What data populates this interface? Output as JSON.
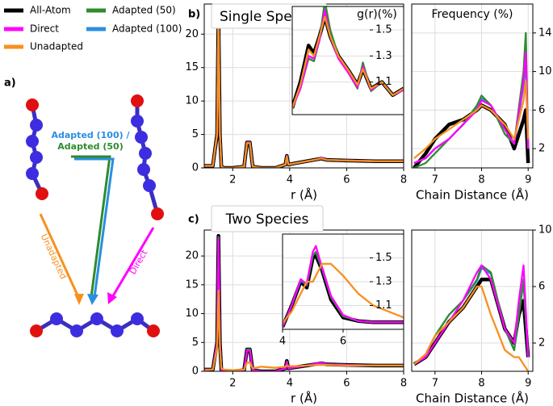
{
  "panel_labels": [
    "a)",
    "b)",
    "c)"
  ],
  "diagram_labels": {
    "unadapted": "Unadapted",
    "direct": "Direct",
    "adapted_100": "Adapted (100) /",
    "adapted_50": "Adapted (50)"
  },
  "chart_data": [
    {
      "type": "line",
      "title": "Single Species",
      "xlabel": "r (Å)",
      "xlim": [
        1,
        8
      ],
      "xticks": [
        2,
        4,
        6,
        8
      ],
      "ylim": [
        0,
        24.5
      ],
      "yticks": [
        0,
        5,
        10,
        15,
        20
      ],
      "grid": true,
      "x": [
        1,
        1.3,
        1.45,
        1.5,
        1.55,
        1.6,
        1.7,
        2,
        2.4,
        2.5,
        2.6,
        2.7,
        3,
        3.5,
        3.85,
        3.9,
        3.95,
        4.2,
        4.6,
        5,
        5.1,
        5.3,
        6,
        7,
        8
      ],
      "series": [
        {
          "name": "All-Atom",
          "color": "#000000",
          "values": [
            0.3,
            0.3,
            5,
            23.5,
            5,
            0.2,
            0,
            0,
            0.2,
            3.8,
            3.8,
            0.2,
            0,
            0,
            0.5,
            1.8,
            0.5,
            0.7,
            1,
            1.3,
            1.4,
            1.2,
            1.1,
            1,
            1
          ]
        },
        {
          "name": "Direct",
          "color": "#ff00ff",
          "values": [
            0.3,
            0.3,
            5,
            23.3,
            5,
            0.2,
            0,
            0,
            0.2,
            3.8,
            3.8,
            0.2,
            0,
            0,
            0.5,
            1.8,
            0.5,
            0.7,
            1,
            1.3,
            1.5,
            1.2,
            1.1,
            1,
            1
          ]
        },
        {
          "name": "Unadapted",
          "color": "#f7901e",
          "values": [
            0.3,
            0.3,
            5,
            23.3,
            5,
            0.2,
            0,
            0,
            0.2,
            3.7,
            3.7,
            0.2,
            0,
            0,
            0.5,
            1.7,
            0.5,
            0.7,
            1,
            1.3,
            1.4,
            1.2,
            1.1,
            1,
            1
          ]
        },
        {
          "name": "Adapted (50)",
          "color": "#2e8b2e",
          "values": [
            0.3,
            0.3,
            5,
            23.4,
            5,
            0.2,
            0,
            0,
            0.2,
            3.8,
            3.8,
            0.2,
            0,
            0,
            0.5,
            1.8,
            0.5,
            0.7,
            1,
            1.3,
            1.5,
            1.2,
            1.1,
            1,
            1
          ]
        },
        {
          "name": "Adapted (100)",
          "color": "#2a8fe0",
          "values": [
            0.3,
            0.3,
            5,
            23.4,
            5,
            0.2,
            0,
            0,
            0.2,
            3.8,
            3.8,
            0.2,
            0,
            0,
            0.5,
            1.8,
            0.5,
            0.7,
            1,
            1.3,
            1.5,
            1.2,
            1.1,
            1,
            1
          ]
        }
      ]
    },
    {
      "type": "line",
      "title": "g(r)(%)",
      "xlim": [
        3.9,
        8
      ],
      "ylim": [
        0.85,
        1.68
      ],
      "yticks": [
        1.1,
        1.3,
        1.5
      ],
      "grid": true,
      "x": [
        3.9,
        4.2,
        4.5,
        4.7,
        4.9,
        5.1,
        5.3,
        5.6,
        6,
        6.3,
        6.5,
        6.8,
        7.2,
        7.6,
        8
      ],
      "series": [
        {
          "name": "All-Atom",
          "color": "#000000",
          "values": [
            0.9,
            1.1,
            1.38,
            1.32,
            1.45,
            1.6,
            1.45,
            1.3,
            1.18,
            1.08,
            1.2,
            1.05,
            1.1,
            1.0,
            1.05
          ]
        },
        {
          "name": "Direct",
          "color": "#ff00ff",
          "values": [
            0.9,
            1.05,
            1.3,
            1.28,
            1.42,
            1.65,
            1.45,
            1.28,
            1.16,
            1.06,
            1.22,
            1.04,
            1.1,
            1.0,
            1.04
          ]
        },
        {
          "name": "Unadapted",
          "color": "#f7901e",
          "values": [
            0.9,
            1.08,
            1.35,
            1.3,
            1.45,
            1.6,
            1.45,
            1.3,
            1.18,
            1.08,
            1.2,
            1.05,
            1.1,
            1.0,
            1.05
          ]
        },
        {
          "name": "Adapted (50)",
          "color": "#2e8b2e",
          "values": [
            0.9,
            1.05,
            1.28,
            1.26,
            1.42,
            1.72,
            1.5,
            1.3,
            1.16,
            1.05,
            1.25,
            1.03,
            1.1,
            1.0,
            1.04
          ]
        },
        {
          "name": "Adapted (100)",
          "color": "#2a8fe0",
          "values": [
            0.9,
            1.06,
            1.3,
            1.28,
            1.43,
            1.66,
            1.46,
            1.29,
            1.16,
            1.06,
            1.22,
            1.04,
            1.1,
            1.0,
            1.04
          ]
        }
      ]
    },
    {
      "type": "line",
      "title": "Frequency (%)",
      "xlabel": "Chain Distance (Å)",
      "xlim": [
        6.5,
        9.1
      ],
      "xticks": [
        7,
        8,
        9
      ],
      "ylim": [
        0,
        17
      ],
      "yticks": [
        2,
        6,
        10,
        14
      ],
      "grid": true,
      "x": [
        6.55,
        6.8,
        7,
        7.3,
        7.6,
        7.9,
        8,
        8.2,
        8.5,
        8.7,
        8.9,
        8.95,
        9
      ],
      "series": [
        {
          "name": "All-Atom",
          "color": "#000000",
          "values": [
            0,
            1.5,
            3,
            4.5,
            5,
            6,
            6.5,
            6,
            4.5,
            2,
            5,
            6,
            0.5
          ]
        },
        {
          "name": "Direct",
          "color": "#ff00ff",
          "values": [
            0.5,
            1,
            2,
            3,
            4.5,
            6,
            7,
            6.5,
            4,
            2.5,
            9,
            12,
            2
          ]
        },
        {
          "name": "Unadapted",
          "color": "#f7901e",
          "values": [
            1,
            2,
            3,
            4,
            5,
            6,
            6.5,
            6,
            4.5,
            3,
            7,
            9,
            3
          ]
        },
        {
          "name": "Adapted (50)",
          "color": "#2e8b2e",
          "values": [
            0,
            0.5,
            1.5,
            3,
            4.5,
            6.5,
            7.5,
            6.5,
            3.5,
            2.5,
            10,
            14,
            2
          ]
        },
        {
          "name": "Adapted (100)",
          "color": "#2a8fe0",
          "values": [
            0.5,
            1,
            2,
            3,
            4.5,
            6.2,
            7.2,
            6.5,
            4,
            2.5,
            8.5,
            11,
            2
          ]
        }
      ]
    },
    {
      "type": "line",
      "title": "Two Species",
      "xlabel": "r (Å)",
      "xlim": [
        1,
        8
      ],
      "xticks": [
        2,
        4,
        6,
        8
      ],
      "ylim": [
        0,
        24.5
      ],
      "yticks": [
        0,
        5,
        10,
        15,
        20
      ],
      "grid": true,
      "x": [
        1,
        1.3,
        1.45,
        1.5,
        1.55,
        1.6,
        1.7,
        2,
        2.4,
        2.5,
        2.6,
        2.7,
        3,
        3.5,
        3.85,
        3.9,
        3.95,
        4.2,
        4.6,
        5,
        5.1,
        5.3,
        6,
        7,
        8
      ],
      "series": [
        {
          "name": "All-Atom",
          "color": "#000000",
          "values": [
            0.3,
            0.3,
            5,
            23.5,
            5,
            0.2,
            0,
            0,
            0.2,
            3.8,
            3.8,
            0.2,
            0,
            0,
            0.5,
            1.8,
            0.5,
            0.7,
            1,
            1.3,
            1.4,
            1.2,
            1.1,
            1,
            1
          ]
        },
        {
          "name": "Direct",
          "color": "#ff00ff",
          "values": [
            0.3,
            0.3,
            5,
            23,
            5,
            0.2,
            0,
            0,
            0.2,
            3.6,
            3.6,
            0.2,
            0,
            0,
            0.5,
            1.6,
            0.5,
            0.7,
            1,
            1.4,
            1.5,
            1.2,
            1.1,
            1,
            1
          ]
        },
        {
          "name": "Unadapted",
          "color": "#f7901e",
          "values": [
            0.2,
            0.3,
            4,
            14,
            4,
            0.5,
            0.3,
            0.2,
            0.3,
            1.5,
            1.5,
            0.5,
            0.8,
            0.6,
            0.8,
            1,
            0.9,
            0.9,
            1,
            1.1,
            1.1,
            1.1,
            1,
            1,
            1
          ]
        },
        {
          "name": "Adapted (50)",
          "color": "#2e8b2e",
          "values": [
            0.3,
            0.3,
            5,
            23.3,
            5,
            0.2,
            0,
            0,
            0.2,
            3.8,
            3.8,
            0.2,
            0,
            0,
            0.5,
            1.7,
            0.5,
            0.7,
            1,
            1.3,
            1.4,
            1.2,
            1.1,
            1,
            1
          ]
        },
        {
          "name": "Adapted (100)",
          "color": "#2a8fe0",
          "values": [
            0.3,
            0.3,
            5,
            23.3,
            5,
            0.2,
            0,
            0,
            0.2,
            3.8,
            3.8,
            0.2,
            0,
            0,
            0.5,
            1.7,
            0.5,
            0.7,
            1,
            1.3,
            1.4,
            1.2,
            1.1,
            1,
            1
          ]
        }
      ]
    },
    {
      "type": "line",
      "xlim": [
        4,
        8
      ],
      "xticks": [
        4,
        6
      ],
      "ylim": [
        0.9,
        1.7
      ],
      "yticks": [
        1.1,
        1.3,
        1.5
      ],
      "grid": true,
      "x": [
        4,
        4.3,
        4.6,
        4.8,
        5,
        5.1,
        5.3,
        5.6,
        6,
        6.5,
        7,
        7.5,
        8
      ],
      "series": [
        {
          "name": "All-Atom",
          "color": "#000000",
          "values": [
            0.92,
            1.1,
            1.3,
            1.25,
            1.5,
            1.52,
            1.4,
            1.15,
            1.0,
            0.97,
            0.96,
            0.96,
            0.96
          ]
        },
        {
          "name": "Direct",
          "color": "#ff00ff",
          "values": [
            0.92,
            1.1,
            1.32,
            1.28,
            1.55,
            1.6,
            1.42,
            1.18,
            1.02,
            0.97,
            0.96,
            0.96,
            0.96
          ]
        },
        {
          "name": "Unadapted",
          "color": "#f7901e",
          "values": [
            0.95,
            1.05,
            1.2,
            1.3,
            1.3,
            1.35,
            1.45,
            1.45,
            1.35,
            1.2,
            1.1,
            1.05,
            1.0
          ]
        },
        {
          "name": "Adapted (50)",
          "color": "#2e8b2e",
          "values": [
            0.92,
            1.1,
            1.32,
            1.27,
            1.52,
            1.55,
            1.42,
            1.17,
            1.01,
            0.97,
            0.96,
            0.96,
            0.96
          ]
        },
        {
          "name": "Adapted (100)",
          "color": "#2a8fe0",
          "values": [
            0.92,
            1.1,
            1.31,
            1.27,
            1.52,
            1.55,
            1.41,
            1.17,
            1.01,
            0.97,
            0.96,
            0.96,
            0.96
          ]
        }
      ]
    },
    {
      "type": "line",
      "xlabel": "Chain Distance (Å)",
      "xlim": [
        6.5,
        9.1
      ],
      "xticks": [
        7,
        8,
        9
      ],
      "ylim": [
        0,
        10
      ],
      "yticks": [
        2,
        6,
        10
      ],
      "grid": true,
      "x": [
        6.55,
        6.8,
        7,
        7.3,
        7.6,
        7.9,
        8,
        8.2,
        8.5,
        8.7,
        8.8,
        8.9,
        9
      ],
      "series": [
        {
          "name": "All-Atom",
          "color": "#000000",
          "values": [
            0.5,
            1,
            2,
            3.5,
            4.5,
            6,
            6.5,
            6.5,
            3,
            2,
            4,
            5,
            1
          ]
        },
        {
          "name": "Direct",
          "color": "#ff00ff",
          "values": [
            0.5,
            1,
            2,
            3.5,
            5,
            7,
            7.5,
            6.5,
            3,
            2,
            5,
            7.5,
            1
          ]
        },
        {
          "name": "Unadapted",
          "color": "#f7901e",
          "values": [
            0.5,
            1.2,
            2.5,
            3.5,
            4.5,
            6,
            6,
            4,
            1.5,
            1,
            1,
            0.5,
            0
          ]
        },
        {
          "name": "Adapted (50)",
          "color": "#2e8b2e",
          "values": [
            0.5,
            1.2,
            2.5,
            4,
            5,
            6.5,
            7.5,
            7,
            3,
            1.5,
            4,
            6.5,
            1
          ]
        },
        {
          "name": "Adapted (100)",
          "color": "#2a8fe0",
          "values": [
            0.5,
            1.2,
            2.5,
            4,
            5,
            6.4,
            7.3,
            6.9,
            3,
            1.5,
            4,
            6.3,
            1
          ]
        }
      ]
    }
  ]
}
